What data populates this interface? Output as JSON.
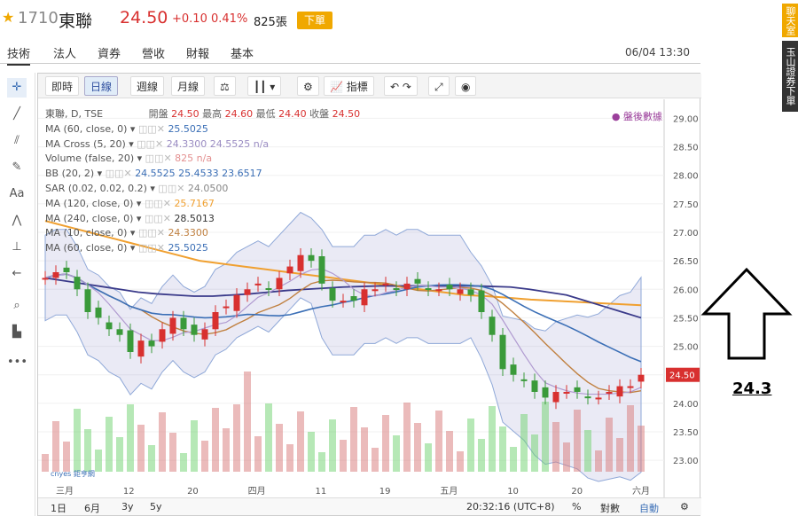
{
  "header": {
    "code": "1710",
    "name": "東聯",
    "price": "24.50",
    "change": "+0.10",
    "percent": "0.41%",
    "volume": "825張",
    "order_button": "下單",
    "colors": {
      "up": "#d8302f",
      "accent": "#f0a800"
    }
  },
  "tabs": [
    "技術",
    "法人",
    "資券",
    "營收",
    "財報",
    "基本"
  ],
  "timestamp": "06/04 13:30",
  "side": {
    "chat": "聊天室",
    "download": "玉山證券下單"
  },
  "toolbar": {
    "intraday": "即時",
    "daily": "日線",
    "weekly": "週線",
    "monthly": "月線",
    "indicators": "指標"
  },
  "legend": {
    "main": "東聯, D, TSE",
    "open_label": "開盤",
    "open": "24.50",
    "high_label": "最高",
    "high": "24.60",
    "low_label": "最低",
    "low": "24.40",
    "close_label": "收盤",
    "close": "24.50",
    "after_hours": "盤後數據",
    "rows": [
      {
        "label": "MA (60, close, 0)",
        "value": "25.5025",
        "color": "#3b6fb6"
      },
      {
        "label": "MA Cross (5, 20)",
        "value": "24.3300",
        "value2": "24.5525",
        "value3": "n/a",
        "color": "#9a8cc2"
      },
      {
        "label": "Volume (false, 20)",
        "value": "825",
        "value2": "n/a",
        "color": "#e39090"
      },
      {
        "label": "BB (20, 2)",
        "value": "24.5525",
        "value2": "25.4533",
        "value3": "23.6517",
        "color": "#3b6fb6"
      },
      {
        "label": "SAR (0.02, 0.02, 0.2)",
        "value": "24.0500",
        "color": "#888"
      },
      {
        "label": "MA (120, close, 0)",
        "value": "25.7167",
        "color": "#f0a030"
      },
      {
        "label": "MA (240, close, 0)",
        "value": "28.5013",
        "color": "#333"
      },
      {
        "label": "MA (10, close, 0)",
        "value": "24.3300",
        "color": "#c08040"
      },
      {
        "label": "MA (60, close, 0)",
        "value": "25.5025",
        "color": "#3b6fb6"
      }
    ]
  },
  "price_axis": [
    "29.00",
    "28.50",
    "28.00",
    "27.50",
    "27.00",
    "26.50",
    "26.00",
    "25.50",
    "25.00",
    "24.50",
    "24.00",
    "23.50",
    "23.00"
  ],
  "current_price_tag": "24.50",
  "date_axis": [
    "三月",
    "12",
    "20",
    "四月",
    "11",
    "19",
    "五月",
    "10",
    "20",
    "六月"
  ],
  "bottombar": {
    "r1d": "1日",
    "r6m": "6月",
    "r3y": "3y",
    "r5y": "5y",
    "clock": "20:32:16 (UTC+8)",
    "pct": "%",
    "log": "對數",
    "auto": "自動"
  },
  "annotation": {
    "value": "24.3"
  },
  "watermark": "cnyes 鉅亨網",
  "chart_data": {
    "type": "line",
    "ylim": [
      22.8,
      29.1
    ],
    "candles_close": [
      26.2,
      26.3,
      26.3,
      26.0,
      25.6,
      25.5,
      25.3,
      25.2,
      24.9,
      25.1,
      25.0,
      25.3,
      25.5,
      25.3,
      25.2,
      25.3,
      25.6,
      25.7,
      25.9,
      26.0,
      26.1,
      26.0,
      26.2,
      26.4,
      26.6,
      26.5,
      26.1,
      25.8,
      25.8,
      25.8,
      26.0,
      26.0,
      26.1,
      26.0,
      26.1,
      26.1,
      26.0,
      26.0,
      26.0,
      26.0,
      25.9,
      25.6,
      25.2,
      24.6,
      24.5,
      24.4,
      24.2,
      24.1,
      24.2,
      24.2,
      24.2,
      24.1,
      24.1,
      24.2,
      24.3,
      24.3,
      24.5
    ],
    "ma60": [
      26.2,
      26.15,
      26.1,
      26.05,
      26.0,
      25.95,
      25.92,
      25.9,
      25.88,
      25.88,
      25.9,
      25.92,
      25.95,
      25.98,
      26.0,
      26.02,
      26.04,
      26.05,
      26.06,
      26.06,
      26.06,
      26.06,
      26.06,
      26.06,
      26.05,
      26.04,
      26.0,
      25.95,
      25.9,
      25.8,
      25.7,
      25.6,
      25.5
    ],
    "ma120": [
      27.2,
      27.1,
      27.0,
      26.9,
      26.8,
      26.7,
      26.6,
      26.5,
      26.45,
      26.4,
      26.35,
      26.3,
      26.25,
      26.2,
      26.15,
      26.1,
      26.05,
      26.0,
      25.95,
      25.9,
      25.88,
      25.85,
      25.82,
      25.8,
      25.78,
      25.76,
      25.74,
      25.72
    ]
  }
}
